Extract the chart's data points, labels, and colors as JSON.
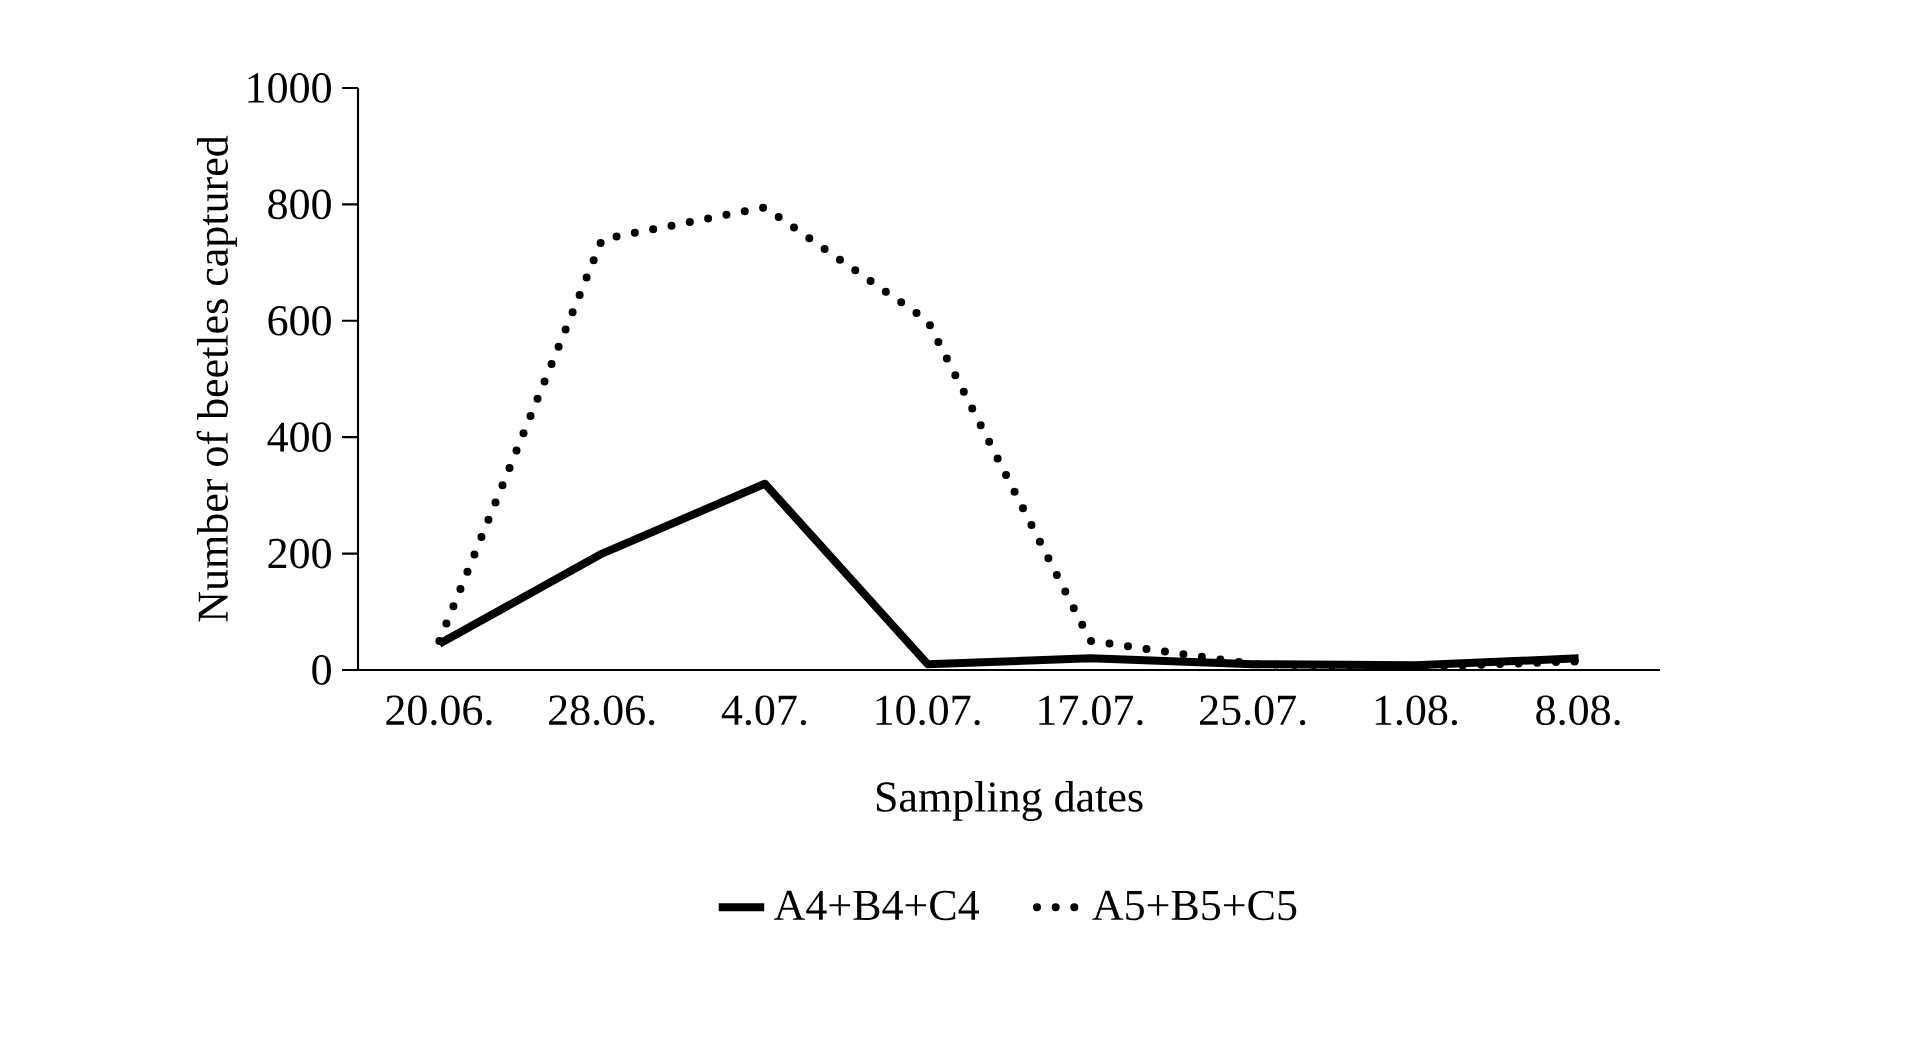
{
  "chart_data": {
    "type": "line",
    "xlabel": "Sampling dates",
    "ylabel": "Number of beetles captured",
    "categories": [
      "20.06.",
      "28.06.",
      "4.07.",
      "10.07.",
      "17.07.",
      "25.07.",
      "1.08.",
      "8.08."
    ],
    "series": [
      {
        "name": "A4+B4+C4",
        "color": "#000000",
        "line_style": "solid",
        "values": [
          45,
          200,
          320,
          10,
          20,
          10,
          8,
          20
        ]
      },
      {
        "name": "A5+B5+C5",
        "color": "#000000",
        "line_style": "dotted",
        "values": [
          50,
          740,
          795,
          600,
          50,
          10,
          5,
          15
        ]
      }
    ],
    "ylim": [
      0,
      1000
    ],
    "yticks": [
      0,
      200,
      400,
      600,
      800,
      1000
    ],
    "grid": false,
    "legend": "bottom",
    "marker": "none"
  }
}
